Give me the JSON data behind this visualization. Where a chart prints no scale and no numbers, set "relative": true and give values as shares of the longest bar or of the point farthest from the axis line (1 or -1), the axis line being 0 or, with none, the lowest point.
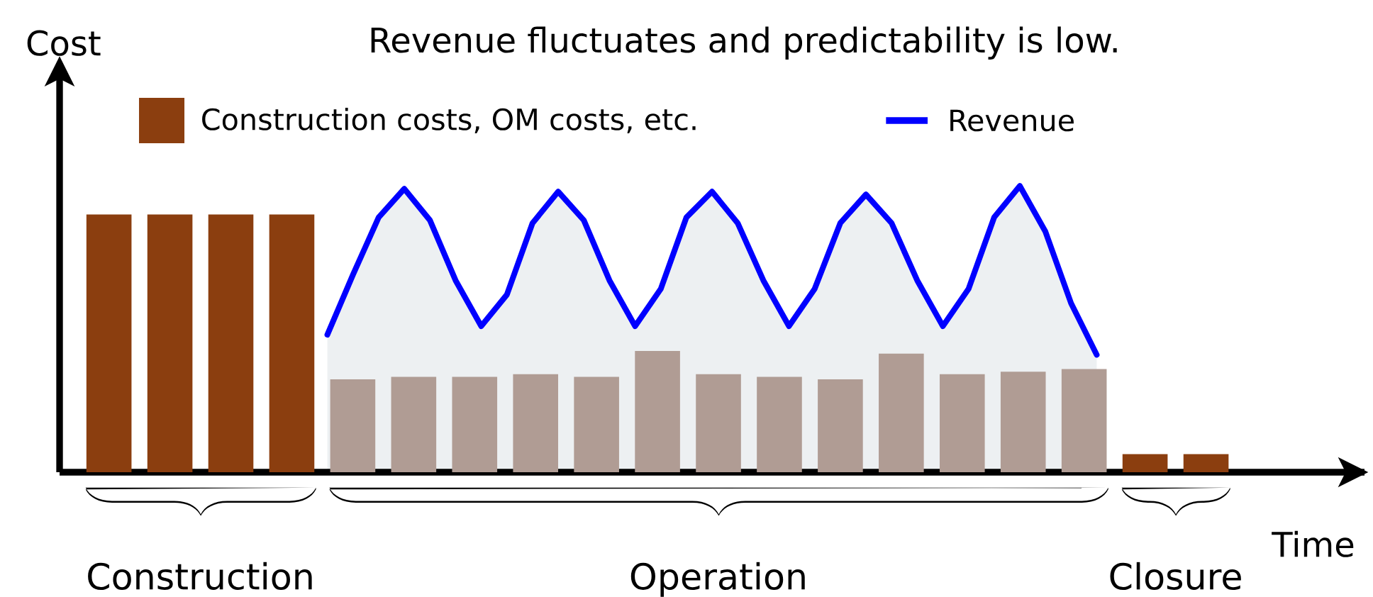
{
  "chart_data": [
    {
      "type": "bar",
      "title": "Revenue fluctuates and predictability is low.",
      "xlabel": "Time",
      "ylabel": "Cost",
      "relative": true,
      "legend": "top left",
      "categories": [
        null,
        null,
        null,
        null,
        null,
        null,
        null,
        null,
        null,
        null,
        null,
        null,
        null,
        null,
        null,
        null,
        null,
        null,
        null
      ],
      "annotations": [
        "Construction",
        "Operation",
        "Closure"
      ],
      "series": [
        {
          "name": "Construction costs, OM costs, etc.",
          "color": "#8b3e0f",
          "colors": [
            "#8b3e0f",
            "#8b3e0f",
            "#8b3e0f",
            "#8b3e0f",
            "#b09c94",
            "#b09c94",
            "#b09c94",
            "#b09c94",
            "#b09c94",
            "#b09c94",
            "#b09c94",
            "#b09c94",
            "#b09c94",
            "#b09c94",
            "#b09c94",
            "#b09c94",
            "#b09c94",
            "#8b3e0f",
            "#8b3e0f"
          ],
          "values": [
            1,
            1,
            1,
            1,
            0.36,
            0.37,
            0.37,
            0.38,
            0.37,
            0.47,
            0.38,
            0.37,
            0.36,
            0.46,
            0.38,
            0.39,
            0.4,
            0.07,
            0.07
          ]
        }
      ]
    },
    {
      "type": "area",
      "relative": true,
      "legend": "top right",
      "categories": [
        null,
        null,
        null,
        null,
        null,
        null,
        null,
        null,
        null,
        null,
        null,
        null,
        null,
        null,
        null,
        null,
        null,
        null,
        null,
        null,
        null,
        null,
        null,
        null,
        null,
        null,
        null,
        null,
        null,
        null,
        null
      ],
      "series": [
        {
          "name": "Revenue",
          "color": "#0000ff",
          "values": [
            0.48,
            0.69,
            0.89,
            0.99,
            0.88,
            0.67,
            0.51,
            0.62,
            0.87,
            0.98,
            0.88,
            0.67,
            0.51,
            0.64,
            0.89,
            0.98,
            0.87,
            0.67,
            0.51,
            0.64,
            0.87,
            0.97,
            0.87,
            0.67,
            0.51,
            0.64,
            0.89,
            1,
            0.84,
            0.59,
            0.41
          ]
        }
      ]
    }
  ]
}
